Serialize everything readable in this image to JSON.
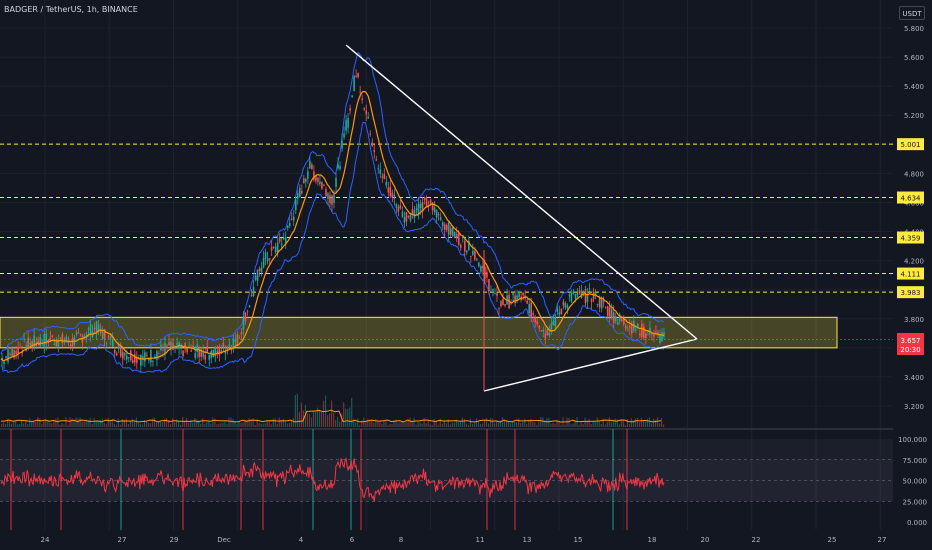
{
  "header": {
    "title": "BADGER / TetherUS, 1h, BINANCE",
    "currency": "USDT"
  },
  "price_axis": {
    "ticks": [
      "5.800",
      "5.600",
      "5.400",
      "5.200",
      "5.000",
      "4.800",
      "4.600",
      "4.400",
      "4.200",
      "4.000",
      "3.800",
      "3.600",
      "3.400",
      "3.200"
    ]
  },
  "level_labels": [
    "5.001",
    "4.634",
    "4.359",
    "4.111",
    "3.983"
  ],
  "last_price": {
    "price": "3.657",
    "countdown": "20:30",
    "color": "#f23645"
  },
  "rsi_axis": {
    "ticks": [
      "100.000",
      "75.000",
      "50.000",
      "25.000",
      "0.000"
    ]
  },
  "time_axis": {
    "ticks": [
      "24",
      "27",
      "29",
      "Dec",
      "4",
      "6",
      "8",
      "11",
      "13",
      "15",
      "18",
      "20",
      "22",
      "25",
      "27"
    ]
  },
  "colors": {
    "background": "#131722",
    "level_line": "#ffeb3b",
    "zone": "#ffeb3b",
    "triangle": "#ffffff",
    "bollinger": "#2962ff",
    "ma": "#ff9800",
    "rsi": "#f23645",
    "candle_up": "#26a69a",
    "candle_down": "#ef5350"
  },
  "chart_data": {
    "type": "candlestick",
    "timeframe": "1h",
    "close_series": [
      [
        "Nov 22",
        3.52
      ],
      [
        "Nov 23",
        3.62
      ],
      [
        "Nov 24",
        3.66
      ],
      [
        "Nov 25",
        3.64
      ],
      [
        "Nov 26",
        3.74
      ],
      [
        "Nov 27",
        3.58
      ],
      [
        "Nov 28",
        3.52
      ],
      [
        "Nov 29",
        3.6
      ],
      [
        "Nov 30",
        3.58
      ],
      [
        "Dec 1",
        3.56
      ],
      [
        "Dec 2",
        3.66
      ],
      [
        "Dec 3",
        4.18
      ],
      [
        "Dec 4",
        4.36
      ],
      [
        "Dec 5",
        4.85
      ],
      [
        "Dec 5 12h",
        4.62
      ],
      [
        "Dec 6",
        5.5
      ],
      [
        "Dec 7",
        4.8
      ],
      [
        "Dec 8",
        4.5
      ],
      [
        "Dec 9",
        4.6
      ],
      [
        "Dec 10",
        4.4
      ],
      [
        "Dec 11",
        4.25
      ],
      [
        "Dec 11 12h",
        3.9
      ],
      [
        "Dec 12",
        3.95
      ],
      [
        "Dec 13",
        3.7
      ],
      [
        "Dec 14",
        3.95
      ],
      [
        "Dec 15",
        3.96
      ],
      [
        "Dec 16",
        3.8
      ],
      [
        "Dec 17",
        3.72
      ],
      [
        "Dec 18",
        3.66
      ]
    ],
    "horizontal_levels": [
      5.001,
      4.634,
      4.359,
      4.111,
      3.983
    ],
    "support_zone": [
      3.6,
      3.81
    ],
    "triangle_apex": 3.66,
    "ylim": [
      3.1,
      5.9
    ],
    "rsi_levels": [
      75,
      50,
      25
    ]
  }
}
